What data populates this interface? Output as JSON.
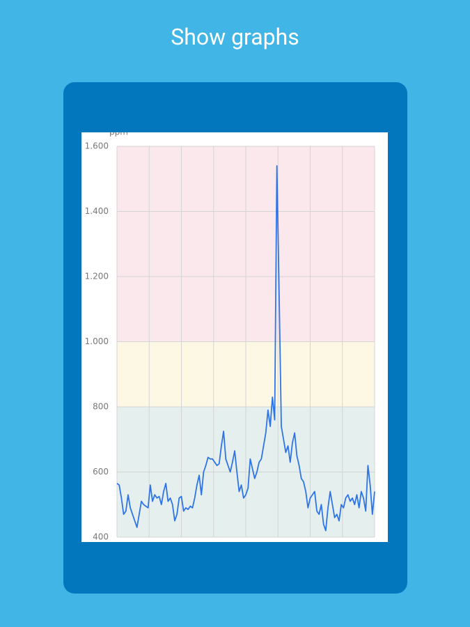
{
  "header": {
    "title": "Show graphs"
  },
  "chart_data": {
    "type": "line",
    "y_label": "ppm",
    "ylim": [
      400,
      1600
    ],
    "yticks": [
      400,
      600,
      800,
      {
        "value": 1000,
        "label": "1.000"
      },
      {
        "value": 1200,
        "label": "1.200"
      },
      {
        "value": 1400,
        "label": "1.400"
      },
      {
        "value": 1600,
        "label": "1.600"
      }
    ],
    "grid": true,
    "bands": [
      {
        "from": 400,
        "to": 800,
        "color": "#e5f0ee"
      },
      {
        "from": 800,
        "to": 1000,
        "color": "#fcf8e4"
      },
      {
        "from": 1000,
        "to": 1600,
        "color": "#fbe8ec"
      }
    ],
    "series": [
      {
        "color": "#2f74e6",
        "values": [
          565,
          560,
          520,
          470,
          480,
          530,
          490,
          470,
          450,
          430,
          470,
          510,
          500,
          495,
          490,
          560,
          510,
          530,
          520,
          525,
          500,
          540,
          565,
          510,
          520,
          500,
          450,
          470,
          520,
          525,
          480,
          490,
          485,
          495,
          490,
          520,
          560,
          590,
          530,
          600,
          620,
          645,
          640,
          640,
          630,
          620,
          625,
          680,
          725,
          640,
          620,
          600,
          630,
          665,
          600,
          540,
          560,
          520,
          530,
          550,
          640,
          610,
          580,
          600,
          630,
          640,
          680,
          720,
          790,
          740,
          830,
          760,
          1540,
          1150,
          740,
          700,
          660,
          680,
          630,
          690,
          720,
          650,
          620,
          580,
          570,
          540,
          490,
          520,
          530,
          540,
          480,
          470,
          500,
          440,
          420,
          490,
          540,
          500,
          460,
          470,
          450,
          500,
          490,
          520,
          530,
          510,
          520,
          500,
          530,
          490,
          540,
          520,
          480,
          620,
          560,
          470,
          540
        ]
      }
    ]
  }
}
